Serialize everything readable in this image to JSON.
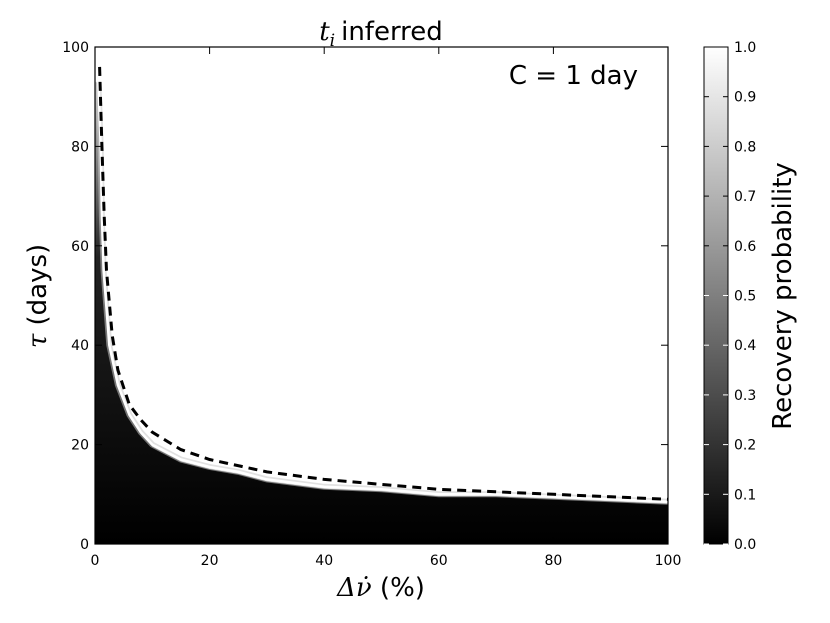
{
  "chart_data": {
    "type": "heatmap",
    "title": "inferred",
    "title_math": "t",
    "title_math_sub": "i",
    "annotation": "C = 1 day",
    "xlabel_prefix": "Δν̇",
    "xlabel_suffix": " (%)",
    "ylabel_prefix": "τ",
    "ylabel_suffix": " (days)",
    "xlim": [
      0,
      100
    ],
    "ylim": [
      0,
      100
    ],
    "x_ticks": [
      "0",
      "20",
      "40",
      "60",
      "80",
      "100"
    ],
    "y_ticks": [
      "0",
      "20",
      "40",
      "60",
      "80",
      "100"
    ],
    "colorbar": {
      "label": "Recovery probability",
      "range": [
        0.0,
        1.0
      ],
      "ticks": [
        "0.0",
        "0.1",
        "0.2",
        "0.3",
        "0.4",
        "0.5",
        "0.6",
        "0.7",
        "0.8",
        "0.9",
        "1.0"
      ],
      "colormap": "gray"
    },
    "series": [
      {
        "style": "dashed",
        "color": "#000000",
        "x": [
          0.8,
          1.2,
          1.6,
          2.0,
          3.0,
          4.0,
          6.0,
          8.0,
          10,
          15,
          20,
          30,
          40,
          50,
          60,
          70,
          80,
          90,
          100
        ],
        "y": [
          96,
          80,
          66,
          55,
          42,
          35,
          28,
          25,
          22.5,
          19,
          17,
          14.5,
          13,
          12,
          11,
          10.5,
          10,
          9.5,
          9
        ]
      },
      {
        "style": "solid",
        "color": "#ffffff",
        "x": [
          0.6,
          1.0,
          1.2,
          1.5,
          2.5,
          4.0,
          6.0,
          8.0,
          10,
          15,
          20,
          25,
          30,
          40,
          50,
          60,
          70,
          80,
          90,
          100
        ],
        "y": [
          93,
          80,
          66,
          55,
          40,
          32,
          26,
          22.5,
          20,
          17,
          15.5,
          14.5,
          13,
          11.5,
          11,
          10,
          10,
          9.5,
          9,
          8.5
        ]
      }
    ]
  }
}
